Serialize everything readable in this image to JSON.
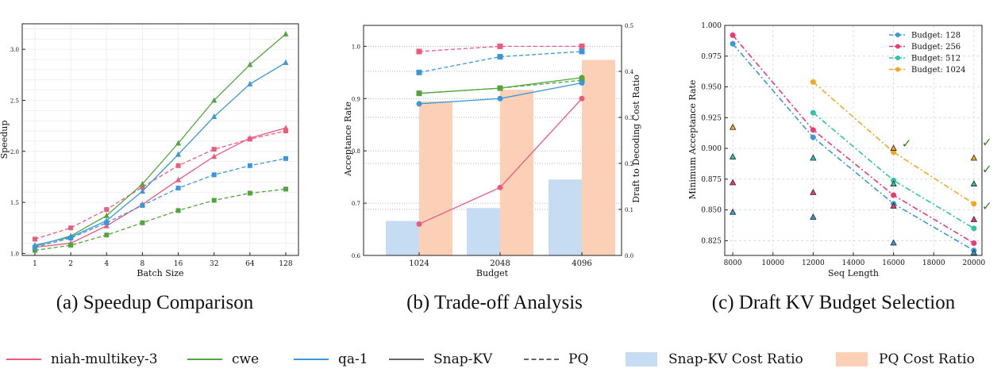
{
  "colors": {
    "niah": "#ec5a7e",
    "cwe": "#52a53c",
    "qa": "#3a97d8",
    "budget128": "#3a97d8",
    "budget256": "#ec3a72",
    "budget512": "#2ec4a6",
    "budget1024": "#f5a623",
    "snapkv_bar": "#c6dcf2",
    "pq_bar": "#fcd0b6",
    "check": "#2e7d1e"
  },
  "captions": {
    "a": "(a) Speedup Comparison",
    "b": "(b) Trade-off Analysis",
    "c": "(c) Draft KV Budget Selection"
  },
  "legend": [
    {
      "label": "niah-multikey-3",
      "kind": "line",
      "color": "#ec5a7e",
      "dash": false
    },
    {
      "label": "cwe",
      "kind": "line",
      "color": "#52a53c",
      "dash": false
    },
    {
      "label": "qa-1",
      "kind": "line",
      "color": "#3a97d8",
      "dash": false
    },
    {
      "label": "Snap-KV",
      "kind": "line",
      "color": "#666666",
      "dash": false
    },
    {
      "label": "PQ",
      "kind": "line",
      "color": "#666666",
      "dash": true
    },
    {
      "label": "Snap-KV Cost Ratio",
      "kind": "box",
      "color": "#c6dcf2"
    },
    {
      "label": "PQ Cost Ratio",
      "kind": "box",
      "color": "#fcd0b6"
    }
  ],
  "chart_data": [
    {
      "id": "a",
      "type": "line",
      "title": "Speedup Comparison",
      "xlabel": "Batch Size",
      "ylabel": "Speedup",
      "categories": [
        "1",
        "2",
        "4",
        "8",
        "16",
        "32",
        "64",
        "128"
      ],
      "ylim": [
        0.98,
        3.25
      ],
      "yticks": [
        "1.0",
        "1.5",
        "2.0",
        "2.5",
        "3.0"
      ],
      "yticks_values": [
        1.0,
        1.5,
        2.0,
        2.5,
        3.0
      ],
      "series": [
        {
          "name": "niah-multikey-3 Snap-KV",
          "task": "niah",
          "method": "Snap-KV",
          "values": [
            1.06,
            1.1,
            1.27,
            1.48,
            1.72,
            1.95,
            2.13,
            2.23
          ]
        },
        {
          "name": "niah-multikey-3 PQ",
          "task": "niah",
          "method": "PQ",
          "values": [
            1.14,
            1.25,
            1.43,
            1.65,
            1.86,
            2.02,
            2.12,
            2.2
          ]
        },
        {
          "name": "cwe Snap-KV",
          "task": "cwe",
          "method": "Snap-KV",
          "values": [
            1.07,
            1.17,
            1.37,
            1.68,
            2.08,
            2.5,
            2.85,
            3.15
          ]
        },
        {
          "name": "cwe PQ",
          "task": "cwe",
          "method": "PQ",
          "values": [
            1.03,
            1.08,
            1.18,
            1.3,
            1.42,
            1.52,
            1.59,
            1.63
          ]
        },
        {
          "name": "qa-1 Snap-KV",
          "task": "qa",
          "method": "Snap-KV",
          "values": [
            1.08,
            1.16,
            1.32,
            1.61,
            1.97,
            2.34,
            2.66,
            2.87
          ]
        },
        {
          "name": "qa-1 PQ",
          "task": "qa",
          "method": "PQ",
          "values": [
            1.06,
            1.15,
            1.3,
            1.47,
            1.64,
            1.77,
            1.86,
            1.93
          ]
        }
      ]
    },
    {
      "id": "b",
      "type": "bar+line",
      "title": "Trade-off Analysis",
      "xlabel": "Budget",
      "ylabel": "Acceptance Rate",
      "y2label": "Draft to Decoding Cost Ratio",
      "categories": [
        "1024",
        "2048",
        "4096"
      ],
      "ylim": [
        0.6,
        1.04
      ],
      "yticks": [
        "0.6",
        "0.7",
        "0.8",
        "0.9",
        "1.0"
      ],
      "yticks_values": [
        0.6,
        0.7,
        0.8,
        0.9,
        1.0
      ],
      "y2lim": [
        0.0,
        0.5
      ],
      "y2ticks": [
        "0.0",
        "0.1",
        "0.2",
        "0.3",
        "0.4",
        "0.5"
      ],
      "y2ticks_values": [
        0.0,
        0.1,
        0.2,
        0.3,
        0.4,
        0.5
      ],
      "bars": [
        {
          "name": "Snap-KV Cost Ratio",
          "values": [
            0.075,
            0.103,
            0.165
          ]
        },
        {
          "name": "PQ Cost Ratio",
          "values": [
            0.335,
            0.36,
            0.425
          ]
        }
      ],
      "series": [
        {
          "name": "niah-multikey-3 Snap-KV",
          "task": "niah",
          "method": "Snap-KV",
          "values": [
            0.66,
            0.73,
            0.9
          ]
        },
        {
          "name": "niah-multikey-3 PQ",
          "task": "niah",
          "method": "PQ",
          "values": [
            0.99,
            1.0,
            1.0
          ]
        },
        {
          "name": "cwe Snap-KV",
          "task": "cwe",
          "method": "Snap-KV",
          "values": [
            0.91,
            0.92,
            0.94
          ]
        },
        {
          "name": "cwe PQ",
          "task": "cwe",
          "method": "PQ",
          "values": [
            0.91,
            0.92,
            0.935
          ]
        },
        {
          "name": "qa-1 Snap-KV",
          "task": "qa",
          "method": "Snap-KV",
          "values": [
            0.89,
            0.9,
            0.93
          ]
        },
        {
          "name": "qa-1 PQ",
          "task": "qa",
          "method": "PQ",
          "values": [
            0.95,
            0.98,
            0.99
          ]
        }
      ]
    },
    {
      "id": "c",
      "type": "line+scatter",
      "title": "Draft KV Budget Selection",
      "xlabel": "Seq Length",
      "ylabel": "Minimum Acceptance Rate",
      "xlim": [
        7600,
        20400
      ],
      "xticks": [
        "8000",
        "10000",
        "12000",
        "14000",
        "16000",
        "18000",
        "20000"
      ],
      "xticks_values": [
        8000,
        10000,
        12000,
        14000,
        16000,
        18000,
        20000
      ],
      "ylim": [
        0.813,
        1.0
      ],
      "yticks": [
        "0.825",
        "0.850",
        "0.875",
        "0.900",
        "0.925",
        "0.950",
        "0.975",
        "1.000"
      ],
      "yticks_values": [
        0.825,
        0.85,
        0.875,
        0.9,
        0.925,
        0.95,
        0.975,
        1.0
      ],
      "legend_position": "top-right",
      "series": [
        {
          "name": "Budget: 128",
          "color_key": "budget128",
          "x": [
            8000,
            12000,
            16000,
            20000
          ],
          "values": [
            0.985,
            0.909,
            0.855,
            0.817
          ]
        },
        {
          "name": "Budget: 256",
          "color_key": "budget256",
          "x": [
            8000,
            12000,
            16000,
            20000
          ],
          "values": [
            0.992,
            0.915,
            0.862,
            0.823
          ]
        },
        {
          "name": "Budget: 512",
          "color_key": "budget512",
          "x": [
            12000,
            16000,
            20000
          ],
          "values": [
            0.929,
            0.874,
            0.835
          ]
        },
        {
          "name": "Budget: 1024",
          "color_key": "budget1024",
          "x": [
            12000,
            16000,
            20000
          ],
          "values": [
            0.954,
            0.897,
            0.855
          ]
        }
      ],
      "triangles": [
        {
          "x": 8000,
          "y": 0.917,
          "color_key": "budget1024"
        },
        {
          "x": 8000,
          "y": 0.893,
          "color_key": "budget512"
        },
        {
          "x": 8000,
          "y": 0.872,
          "color_key": "budget256"
        },
        {
          "x": 8000,
          "y": 0.848,
          "color_key": "budget128"
        },
        {
          "x": 12000,
          "y": 0.892,
          "color_key": "budget512"
        },
        {
          "x": 12000,
          "y": 0.864,
          "color_key": "budget256"
        },
        {
          "x": 12000,
          "y": 0.844,
          "color_key": "budget128"
        },
        {
          "x": 16000,
          "y": 0.9,
          "color_key": "budget1024"
        },
        {
          "x": 16000,
          "y": 0.871,
          "color_key": "budget512"
        },
        {
          "x": 16000,
          "y": 0.853,
          "color_key": "budget256"
        },
        {
          "x": 16000,
          "y": 0.823,
          "color_key": "budget128"
        },
        {
          "x": 20000,
          "y": 0.892,
          "color_key": "budget1024"
        },
        {
          "x": 20000,
          "y": 0.871,
          "color_key": "budget512"
        },
        {
          "x": 20000,
          "y": 0.842,
          "color_key": "budget256"
        },
        {
          "x": 20000,
          "y": 0.815,
          "color_key": "budget128"
        }
      ],
      "checkmarks": [
        {
          "x": 16400,
          "y": 0.902,
          "label": "✓"
        },
        {
          "x": 20400,
          "y": 0.903,
          "label": "✓"
        },
        {
          "x": 20400,
          "y": 0.881,
          "label": "✓"
        },
        {
          "x": 20400,
          "y": 0.851,
          "label": "✓"
        }
      ]
    }
  ]
}
